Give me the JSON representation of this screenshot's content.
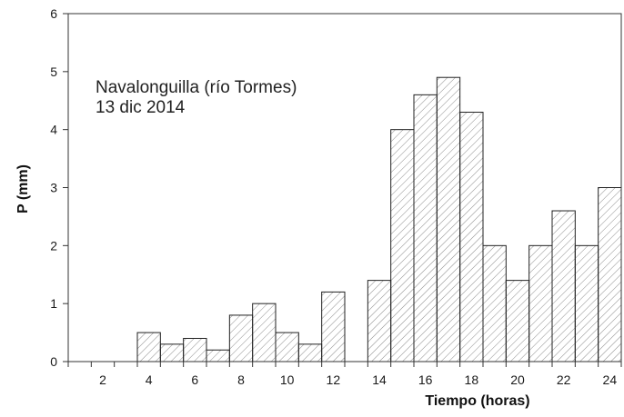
{
  "chart_data": {
    "type": "bar",
    "title": "",
    "annotation": [
      "Navalonguilla (río Tormes)",
      "13 dic 2014"
    ],
    "xlabel": "Tiempo (horas)",
    "ylabel": "P (mm)",
    "xlim": [
      0,
      24
    ],
    "ylim": [
      0,
      6
    ],
    "yticks": [
      "0",
      "1",
      "2",
      "3",
      "4",
      "5",
      "6"
    ],
    "xticks": [
      {
        "pos": 2,
        "label": "2"
      },
      {
        "pos": 4,
        "label": "4"
      },
      {
        "pos": 6,
        "label": "6"
      },
      {
        "pos": 8,
        "label": "8"
      },
      {
        "pos": 10,
        "label": "10"
      },
      {
        "pos": 12,
        "label": "12"
      },
      {
        "pos": 14,
        "label": "14"
      },
      {
        "pos": 16,
        "label": "16"
      },
      {
        "pos": 18,
        "label": "18"
      },
      {
        "pos": 20,
        "label": "20"
      },
      {
        "pos": 22,
        "label": "22"
      },
      {
        "pos": 24,
        "label": "24"
      }
    ],
    "categories": [
      "1",
      "2",
      "3",
      "4",
      "5",
      "6",
      "7",
      "8",
      "9",
      "10",
      "11",
      "12",
      "13",
      "14",
      "15",
      "16",
      "17",
      "18",
      "19",
      "20",
      "21",
      "22",
      "23",
      "24"
    ],
    "values": [
      0,
      0,
      0,
      0.5,
      0.3,
      0.4,
      0.2,
      0.8,
      1.0,
      0.5,
      0.3,
      1.2,
      0,
      1.4,
      4.0,
      4.6,
      4.9,
      4.3,
      2.0,
      1.4,
      2.0,
      2.6,
      2.0,
      3.0
    ],
    "bar_fill": "hatched",
    "grid": false,
    "legend": "none"
  }
}
